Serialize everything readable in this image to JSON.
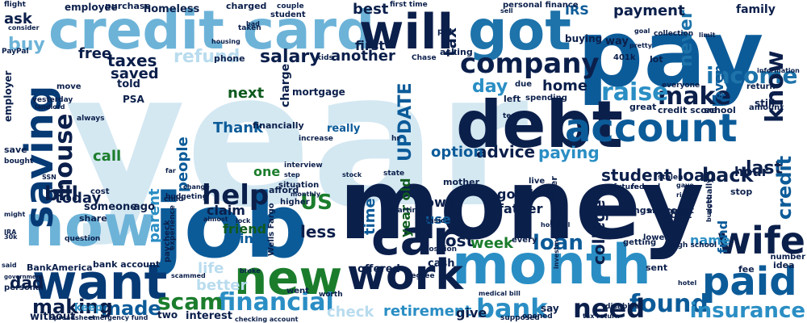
{
  "palette": {
    "navy": "#0b1f4b",
    "darkblue": "#063a75",
    "blue": "#0c5b99",
    "midblue": "#1d73aa",
    "teal": "#2a8ec4",
    "lightblue": "#6db3d8",
    "paleblue": "#b9dcee",
    "verypale": "#d4e8f2",
    "green": "#1b7d2c",
    "darkgreen": "#0e5a1e",
    "darkteal": "#093a4a",
    "gray": "#7da0b7"
  },
  "words": [
    {
      "text": "year",
      "color": "#d4e8f2"
    },
    {
      "text": "money",
      "color": "#0b1f4b"
    },
    {
      "text": "pay",
      "color": "#0c5b99"
    },
    {
      "text": "job",
      "color": "#0c5b99"
    },
    {
      "text": "credit card",
      "color": "#6db3d8"
    },
    {
      "text": "debt",
      "color": "#0b1f4b"
    },
    {
      "text": "month",
      "color": "#2a8ec4"
    },
    {
      "text": "now",
      "color": "#6db3d8"
    },
    {
      "text": "want",
      "color": "#063a75"
    },
    {
      "text": "new",
      "color": "#1b7d2c"
    },
    {
      "text": "got",
      "color": "#1d73aa"
    },
    {
      "text": "will",
      "color": "#0b1f4b"
    },
    {
      "text": "account",
      "color": "#0c5b99"
    },
    {
      "text": "car",
      "color": "#0b1f4b"
    },
    {
      "text": "work",
      "color": "#0b1f4b"
    },
    {
      "text": "paid",
      "color": "#0c5b99"
    },
    {
      "text": "saving",
      "color": "#063a75"
    },
    {
      "text": "wife",
      "color": "#0b1f4b"
    },
    {
      "text": "company",
      "color": "#0b1f4b"
    },
    {
      "text": "help",
      "color": "#0b1f4b"
    },
    {
      "text": "financial",
      "color": "#2a8ec4"
    },
    {
      "text": "scam",
      "color": "#1b7d2c"
    },
    {
      "text": "made",
      "color": "#0c5b99"
    },
    {
      "text": "found",
      "color": "#0c5b99"
    },
    {
      "text": "need",
      "color": "#0b1f4b"
    },
    {
      "text": "bank",
      "color": "#2a8ec4"
    },
    {
      "text": "insurance",
      "color": "#2a8ec4"
    },
    {
      "text": "making",
      "color": "#0b1f4b"
    },
    {
      "text": "bill",
      "color": "#0b1f4b"
    },
    {
      "text": "house",
      "color": "#0b1f4b"
    },
    {
      "text": "loan",
      "color": "#0c5b99"
    },
    {
      "text": "make",
      "color": "#0b1f4b"
    },
    {
      "text": "raise",
      "color": "#2a8ec4"
    },
    {
      "text": "income",
      "color": "#1d73aa"
    },
    {
      "text": "know",
      "color": "#0b1f4b"
    },
    {
      "text": "tax",
      "color": "#0b1f4b"
    },
    {
      "text": "best",
      "color": "#0b1f4b"
    },
    {
      "text": "never",
      "color": "#1d73aa"
    },
    {
      "text": "payment",
      "color": "#0b1f4b"
    },
    {
      "text": "US",
      "color": "#1b7d2c"
    },
    {
      "text": "student loan",
      "color": "#0b1f4b"
    },
    {
      "text": "back",
      "color": "#0b1f4b"
    },
    {
      "text": "last",
      "color": "#0b1f4b"
    },
    {
      "text": "credit",
      "color": "#0c5b99"
    },
    {
      "text": "advice",
      "color": "#0b1f4b"
    },
    {
      "text": "paying",
      "color": "#2a8ec4"
    },
    {
      "text": "parent",
      "color": "#2a8ec4"
    },
    {
      "text": "people",
      "color": "#0c5b99"
    },
    {
      "text": "college",
      "color": "#0b1f4b"
    },
    {
      "text": "day",
      "color": "#2a8ec4"
    },
    {
      "text": "salary",
      "color": "#0b1f4b"
    },
    {
      "text": "taxes",
      "color": "#0b1f4b"
    },
    {
      "text": "free",
      "color": "#0b1f4b"
    },
    {
      "text": "saved",
      "color": "#0b1f4b"
    },
    {
      "text": "ask",
      "color": "#0b1f4b"
    },
    {
      "text": "buy",
      "color": "#6db3d8"
    },
    {
      "text": "refund",
      "color": "#b9dcee"
    },
    {
      "text": "today",
      "color": "#0b1f4b"
    },
    {
      "text": "dad",
      "color": "#0b1f4b"
    },
    {
      "text": "lost",
      "color": "#0b1f4b"
    },
    {
      "text": "week",
      "color": "#1b7d2c"
    },
    {
      "text": "next",
      "color": "#0e5a1e"
    },
    {
      "text": "UPDATE",
      "color": "#0c5b99"
    },
    {
      "text": "home",
      "color": "#0b1f4b"
    },
    {
      "text": "option",
      "color": "#0c5b99"
    },
    {
      "text": "Thank",
      "color": "#0c5b99"
    },
    {
      "text": "time",
      "color": "#0c5b99"
    },
    {
      "text": "year old",
      "color": "#0e5a1e"
    },
    {
      "text": "less",
      "color": "#0b1f4b"
    },
    {
      "text": "friend",
      "color": "#0e5a1e"
    },
    {
      "text": "thing",
      "color": "#0c5b99"
    },
    {
      "text": "life",
      "color": "#b9dcee"
    },
    {
      "text": "better",
      "color": "#b9dcee"
    },
    {
      "text": "retirement",
      "color": "#2a8ec4"
    },
    {
      "text": "give",
      "color": "#0b1f4b"
    },
    {
      "text": "check",
      "color": "#b9dcee"
    },
    {
      "text": "first",
      "color": "#0b1f4b"
    },
    {
      "text": "another",
      "color": "#0b1f4b"
    },
    {
      "text": "call",
      "color": "#1b7d2c"
    },
    {
      "text": "one",
      "color": "#1b7d2c"
    },
    {
      "text": "use",
      "color": "#0c5b99"
    },
    {
      "text": "owe",
      "color": "#0b1f4b"
    },
    {
      "text": "good",
      "color": "#0b1f4b"
    },
    {
      "text": "father",
      "color": "#0b1f4b"
    },
    {
      "text": "hour",
      "color": "#0b1f4b"
    },
    {
      "text": "even",
      "color": "#0c5b99"
    },
    {
      "text": "claim",
      "color": "#0b1f4b"
    },
    {
      "text": "IRS",
      "color": "#0c5b99"
    },
    {
      "text": "fund",
      "color": "#0c5b99"
    },
    {
      "text": "name",
      "color": "#2a8ec4"
    },
    {
      "text": "family",
      "color": "#0b1f4b"
    },
    {
      "text": "charge",
      "color": "#0b1f4b"
    },
    {
      "text": "employer",
      "color": "#0b1f4b"
    },
    {
      "text": "employee",
      "color": "#0b1f4b"
    },
    {
      "text": "purchase",
      "color": "#0b1f4b"
    },
    {
      "text": "homeless",
      "color": "#0b1f4b"
    },
    {
      "text": "mortgage",
      "color": "#0b1f4b"
    },
    {
      "text": "financially",
      "color": "#0b1f4b"
    },
    {
      "text": "really",
      "color": "#0c5b99"
    },
    {
      "text": "keep",
      "color": "#2a8ec4"
    },
    {
      "text": "without",
      "color": "#0b1f4b"
    },
    {
      "text": "interest",
      "color": "#0b1f4b"
    },
    {
      "text": "bank account",
      "color": "#0b1f4b"
    },
    {
      "text": "someone",
      "color": "#0b1f4b"
    },
    {
      "text": "ago",
      "color": "#0b1f4b"
    },
    {
      "text": "share",
      "color": "#0b1f4b"
    },
    {
      "text": "told",
      "color": "#0b1f4b"
    },
    {
      "text": "PSA",
      "color": "#0b1f4b"
    },
    {
      "text": "savings account",
      "color": "#0b1f4b"
    },
    {
      "text": "point",
      "color": "#0b1f4b"
    },
    {
      "text": "school",
      "color": "#0b1f4b"
    },
    {
      "text": "credit score",
      "color": "#0b1f4b"
    },
    {
      "text": "great",
      "color": "#0b1f4b"
    },
    {
      "text": "spending",
      "color": "#0b1f4b"
    },
    {
      "text": "phone",
      "color": "#0b1f4b"
    },
    {
      "text": "personal finance",
      "color": "#0b1f4b"
    },
    {
      "text": "cash",
      "color": "#0b1f4b"
    },
    {
      "text": "lot",
      "color": "#0b1f4b"
    },
    {
      "text": "still",
      "color": "#0b1f4b"
    },
    {
      "text": "buying",
      "color": "#0b1f4b"
    },
    {
      "text": "asking",
      "color": "#0b1f4b"
    },
    {
      "text": "offered",
      "color": "#0b1f4b"
    },
    {
      "text": "BankAmerica",
      "color": "#0b1f4b"
    },
    {
      "text": "Wells Fargo",
      "color": "#0b1f4b"
    },
    {
      "text": "Reminder",
      "color": "#0b1f4b"
    },
    {
      "text": "sent",
      "color": "#0b1f4b"
    },
    {
      "text": "idea",
      "color": "#0b1f4b"
    },
    {
      "text": "number",
      "color": "#0b1f4b"
    },
    {
      "text": "amount",
      "color": "#0b1f4b"
    },
    {
      "text": "return",
      "color": "#0b1f4b"
    },
    {
      "text": "way",
      "color": "#0b1f4b"
    },
    {
      "text": "401k",
      "color": "#0b1f4b"
    },
    {
      "text": "experience",
      "color": "#0b1f4b"
    },
    {
      "text": "situation",
      "color": "#0b1f4b"
    },
    {
      "text": "increase",
      "color": "#0b1f4b"
    },
    {
      "text": "state",
      "color": "#0b1f4b"
    },
    {
      "text": "basic",
      "color": "#0b1f4b"
    },
    {
      "text": "every",
      "color": "#0b1f4b"
    },
    {
      "text": "say",
      "color": "#0b1f4b"
    },
    {
      "text": "mother",
      "color": "#0b1f4b"
    },
    {
      "text": "due",
      "color": "#0b1f4b"
    },
    {
      "text": "left",
      "color": "#0b1f4b"
    },
    {
      "text": "term",
      "color": "#0b1f4b"
    },
    {
      "text": "live",
      "color": "#0b1f4b"
    },
    {
      "text": "young",
      "color": "#0b1f4b"
    },
    {
      "text": "future",
      "color": "#0b1f4b"
    },
    {
      "text": "federal",
      "color": "#0b1f4b"
    },
    {
      "text": "stop",
      "color": "#0b1f4b"
    },
    {
      "text": "bought",
      "color": "#0b1f4b"
    },
    {
      "text": "save",
      "color": "#0b1f4b"
    },
    {
      "text": "cost",
      "color": "#0b1f4b"
    },
    {
      "text": "minimum",
      "color": "#0b1f4b"
    },
    {
      "text": "high school",
      "color": "#0b1f4b"
    },
    {
      "text": "question",
      "color": "#0b1f4b"
    },
    {
      "text": "personal",
      "color": "#0b1f4b"
    },
    {
      "text": "paycheck",
      "color": "#0b1f4b"
    },
    {
      "text": "budgeting",
      "color": "#0b1f4b"
    },
    {
      "text": "afford",
      "color": "#0b1f4b"
    },
    {
      "text": "higher",
      "color": "#0b1f4b"
    },
    {
      "text": "degree",
      "color": "#0b1f4b"
    },
    {
      "text": "position",
      "color": "#0b1f4b"
    },
    {
      "text": "went",
      "color": "#0b1f4b"
    },
    {
      "text": "worth",
      "color": "#0b1f4b"
    },
    {
      "text": "hospital",
      "color": "#0b1f4b"
    },
    {
      "text": "getting",
      "color": "#0b1f4b"
    },
    {
      "text": "actually",
      "color": "#0b1f4b"
    },
    {
      "text": "lower",
      "color": "#0b1f4b"
    },
    {
      "text": "investment",
      "color": "#0b1f4b"
    },
    {
      "text": "fee",
      "color": "#0b1f4b"
    },
    {
      "text": "disabled",
      "color": "#0b1f4b"
    },
    {
      "text": "supposed",
      "color": "#0b1f4b"
    },
    {
      "text": "opened",
      "color": "#0b1f4b"
    },
    {
      "text": "medical bill",
      "color": "#0b1f4b"
    },
    {
      "text": "spreadsheet",
      "color": "#0b1f4b"
    },
    {
      "text": "emergency fund",
      "color": "#0b1f4b"
    },
    {
      "text": "tax return",
      "color": "#0b1f4b"
    },
    {
      "text": "checking account",
      "color": "#0b1f4b"
    },
    {
      "text": "two",
      "color": "#0b1f4b"
    },
    {
      "text": "Chase",
      "color": "#0b1f4b"
    },
    {
      "text": "stolen",
      "color": "#0b1f4b"
    },
    {
      "text": "everyone",
      "color": "#0b1f4b"
    },
    {
      "text": "collection",
      "color": "#0b1f4b"
    },
    {
      "text": "information",
      "color": "#0b1f4b"
    },
    {
      "text": "limit",
      "color": "#0b1f4b"
    },
    {
      "text": "first time",
      "color": "#0b1f4b"
    },
    {
      "text": "sell",
      "color": "#0b1f4b"
    },
    {
      "text": "put",
      "color": "#0b1f4b"
    },
    {
      "text": "kids",
      "color": "#0b1f4b"
    },
    {
      "text": "couple",
      "color": "#0b1f4b"
    },
    {
      "text": "charged",
      "color": "#0b1f4b"
    },
    {
      "text": "student",
      "color": "#0b1f4b"
    },
    {
      "text": "flight",
      "color": "#0b1f4b"
    },
    {
      "text": "PayPal",
      "color": "#0b1f4b"
    },
    {
      "text": "consider",
      "color": "#0b1f4b"
    },
    {
      "text": "taken",
      "color": "#0b1f4b"
    },
    {
      "text": "housing",
      "color": "#0b1f4b"
    },
    {
      "text": "yesterday",
      "color": "#0b1f4b"
    },
    {
      "text": "landlord",
      "color": "#0b1f4b"
    },
    {
      "text": "always",
      "color": "#0b1f4b"
    },
    {
      "text": "move",
      "color": "#0b1f4b"
    },
    {
      "text": "SSN",
      "color": "#0b1f4b"
    },
    {
      "text": "hr",
      "color": "#0b1f4b"
    },
    {
      "text": "step",
      "color": "#0b1f4b"
    },
    {
      "text": "interview",
      "color": "#0b1f4b"
    },
    {
      "text": "far",
      "color": "#0b1f4b"
    },
    {
      "text": "child",
      "color": "#0b1f4b"
    },
    {
      "text": "lock",
      "color": "#0b1f4b"
    },
    {
      "text": "almost",
      "color": "#0b1f4b"
    },
    {
      "text": "change",
      "color": "#0b1f4b"
    },
    {
      "text": "stock",
      "color": "#0b1f4b"
    },
    {
      "text": "starting",
      "color": "#0b1f4b"
    },
    {
      "text": "monthly",
      "color": "#0b1f4b"
    },
    {
      "text": "goal",
      "color": "#0b1f4b"
    },
    {
      "text": "30k",
      "color": "#0b1f4b"
    },
    {
      "text": "IRA",
      "color": "#0b1f4b"
    },
    {
      "text": "government",
      "color": "#0b1f4b"
    },
    {
      "text": "broke",
      "color": "#0b1f4b"
    },
    {
      "text": "hotel",
      "color": "#0b1f4b"
    },
    {
      "text": "scammed",
      "color": "#0b1f4b"
    },
    {
      "text": "bad",
      "color": "#0b1f4b"
    },
    {
      "text": "might",
      "color": "#0b1f4b"
    },
    {
      "text": "said",
      "color": "#0b1f4b"
    },
    {
      "text": "pretty",
      "color": "#0b1f4b"
    },
    {
      "text": "gave",
      "color": "#0b1f4b"
    },
    {
      "text": "rich",
      "color": "#0b1f4b"
    },
    {
      "text": "budget",
      "color": "#0b1f4b"
    }
  ]
}
